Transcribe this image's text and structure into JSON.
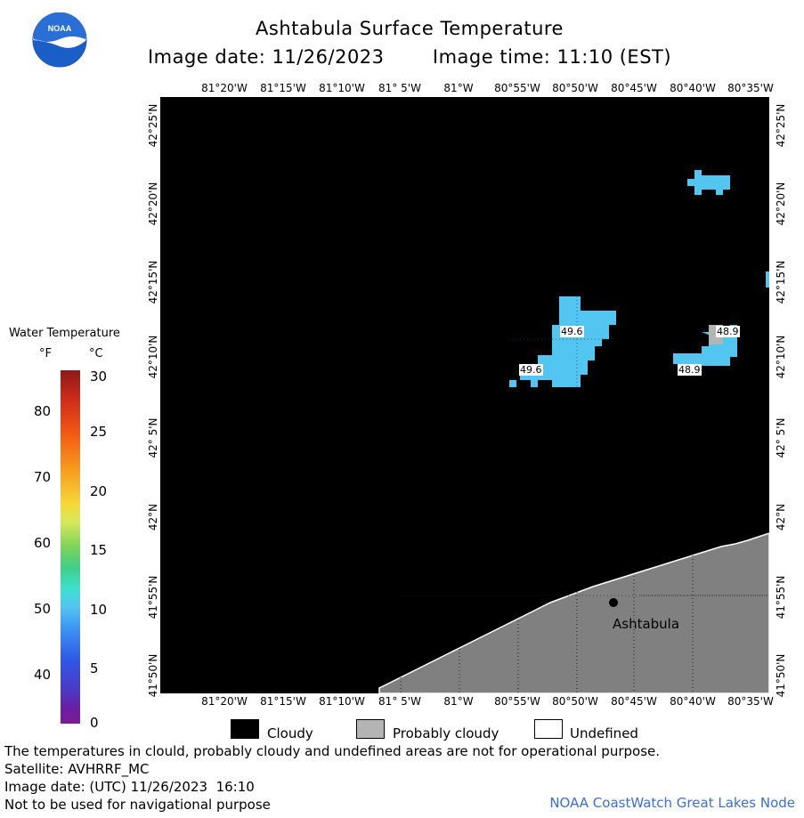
{
  "logo": {
    "text": "NOAA"
  },
  "header": {
    "title": "Ashtabula Surface Temperature",
    "image_date": "Image date: 11/26/2023",
    "image_time": "Image time: 11:10 (EST)"
  },
  "map": {
    "lon_ticks": [
      "81°20'W",
      "81°15'W",
      "81°10'W",
      "81° 5'W",
      "81°W",
      "80°55'W",
      "80°50'W",
      "80°45'W",
      "80°40'W",
      "80°35'W"
    ],
    "lat_ticks": [
      "42°25'N",
      "42°20'N",
      "42°15'N",
      "42°10'N",
      "42° 5'N",
      "42°N",
      "41°55'N",
      "41°50'N"
    ],
    "temperature_labels": [
      "49.6",
      "49.6",
      "48.9",
      "48.9"
    ],
    "city": "Ashtabula",
    "colors": {
      "cloud": "#000000",
      "probably_cloudy": "#b4b4b4",
      "land": "#808080",
      "water_temp": "#52c5f0",
      "undefined": "#ffffff"
    }
  },
  "scale": {
    "title": "Water Temperature",
    "unit_f": "°F",
    "unit_c": "°C",
    "fahrenheit": [
      "80",
      "70",
      "60",
      "50",
      "40"
    ],
    "celsius": [
      "30",
      "25",
      "20",
      "15",
      "10",
      "5",
      "0"
    ]
  },
  "legend": {
    "cloudy": "Cloudy",
    "probably_cloudy": "Probably cloudy",
    "undefined": "Undefined"
  },
  "footer": {
    "note": "The temperatures in clould, probably cloudy and undefined areas are not for operational purpose.",
    "satellite": "Satellite: AVHRRF_MC",
    "utc_date": "Image date: (UTC) 11/26/2023  16:10",
    "disclaimer": "Not to be used for navigational purpose",
    "credit": "NOAA CoastWatch Great Lakes Node"
  }
}
